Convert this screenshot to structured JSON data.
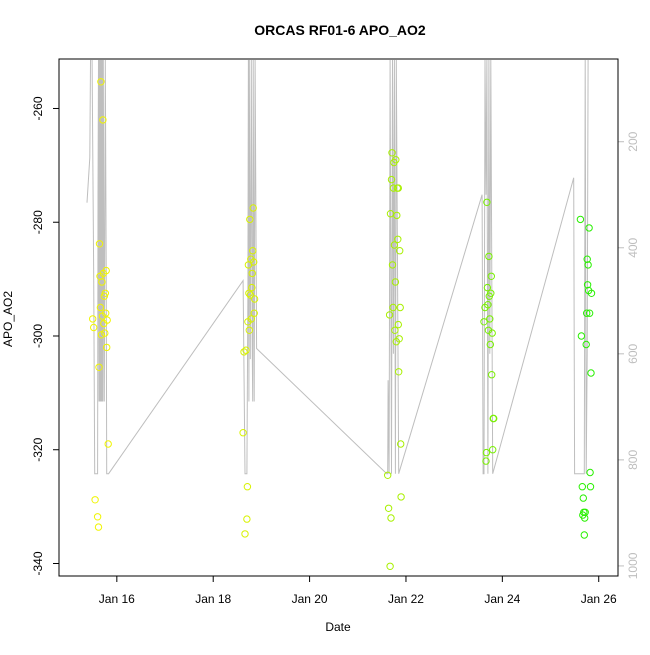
{
  "chart_data": {
    "type": "scatter",
    "title": "ORCAS RF01-6 APO_AO2",
    "xlabel": "Date",
    "ylabel": "APO_AO2",
    "x_ticks": [
      "Jan 16",
      "Jan 18",
      "Jan 20",
      "Jan 22",
      "Jan 24",
      "Jan 26"
    ],
    "x_tick_values": [
      16,
      18,
      20,
      22,
      24,
      26
    ],
    "xlim": [
      14.8,
      26.4
    ],
    "ylim": [
      -342.2,
      -251.3
    ],
    "y_ticks": [
      -340,
      -320,
      -300,
      -280,
      -260
    ],
    "y2_ticks": [
      200,
      400,
      600,
      800,
      1000
    ],
    "y2lim": [
      1019,
      44
    ],
    "y2_axis_color": "#bebebe",
    "secondary_line_color": "#bebebe",
    "box": true,
    "grid": false,
    "legend": "none",
    "points": [
      {
        "x": 15.5,
        "y": -297.0,
        "c": "#f0f500"
      },
      {
        "x": 15.52,
        "y": -298.5,
        "c": "#f0f500"
      },
      {
        "x": 15.55,
        "y": -328.8,
        "c": "#f0f500"
      },
      {
        "x": 15.6,
        "y": -331.8,
        "c": "#f0f500"
      },
      {
        "x": 15.62,
        "y": -333.6,
        "c": "#f0f500"
      },
      {
        "x": 15.63,
        "y": -305.5,
        "c": "#f0f500"
      },
      {
        "x": 15.64,
        "y": -283.8,
        "c": "#f0f500"
      },
      {
        "x": 15.65,
        "y": -289.5,
        "c": "#f0f500"
      },
      {
        "x": 15.66,
        "y": -295.0,
        "c": "#f0f500"
      },
      {
        "x": 15.67,
        "y": -255.3,
        "c": "#f0f500"
      },
      {
        "x": 15.68,
        "y": -299.8,
        "c": "#f0f500"
      },
      {
        "x": 15.69,
        "y": -290.5,
        "c": "#f0f500"
      },
      {
        "x": 15.7,
        "y": -296.5,
        "c": "#f0f500"
      },
      {
        "x": 15.71,
        "y": -262.0,
        "c": "#f0f500"
      },
      {
        "x": 15.72,
        "y": -289.0,
        "c": "#f0f500"
      },
      {
        "x": 15.73,
        "y": -297.8,
        "c": "#f0f500"
      },
      {
        "x": 15.74,
        "y": -293.0,
        "c": "#f0f500"
      },
      {
        "x": 15.75,
        "y": -299.5,
        "c": "#f0f500"
      },
      {
        "x": 15.76,
        "y": -292.5,
        "c": "#f0f500"
      },
      {
        "x": 15.77,
        "y": -296.0,
        "c": "#f0f500"
      },
      {
        "x": 15.78,
        "y": -288.5,
        "c": "#f0f500"
      },
      {
        "x": 15.79,
        "y": -302.0,
        "c": "#f0f500"
      },
      {
        "x": 15.8,
        "y": -297.2,
        "c": "#f0f500"
      },
      {
        "x": 15.82,
        "y": -319.0,
        "c": "#f0f500"
      },
      {
        "x": 18.62,
        "y": -317.0,
        "c": "#d8f200"
      },
      {
        "x": 18.64,
        "y": -302.8,
        "c": "#d8f200"
      },
      {
        "x": 18.66,
        "y": -334.8,
        "c": "#d8f200"
      },
      {
        "x": 18.68,
        "y": -302.5,
        "c": "#d8f200"
      },
      {
        "x": 18.7,
        "y": -332.2,
        "c": "#d8f200"
      },
      {
        "x": 18.71,
        "y": -326.5,
        "c": "#d8f200"
      },
      {
        "x": 18.72,
        "y": -297.5,
        "c": "#d8f200"
      },
      {
        "x": 18.73,
        "y": -287.5,
        "c": "#d8f200"
      },
      {
        "x": 18.74,
        "y": -292.5,
        "c": "#d8f200"
      },
      {
        "x": 18.75,
        "y": -299.0,
        "c": "#d8f200"
      },
      {
        "x": 18.76,
        "y": -279.5,
        "c": "#d8f200"
      },
      {
        "x": 18.77,
        "y": -292.8,
        "c": "#d8f200"
      },
      {
        "x": 18.78,
        "y": -286.5,
        "c": "#d8f200"
      },
      {
        "x": 18.79,
        "y": -297.0,
        "c": "#d8f200"
      },
      {
        "x": 18.8,
        "y": -291.5,
        "c": "#d8f200"
      },
      {
        "x": 18.81,
        "y": -289.0,
        "c": "#d8f200"
      },
      {
        "x": 18.82,
        "y": -285.0,
        "c": "#d8f200"
      },
      {
        "x": 18.83,
        "y": -277.5,
        "c": "#d8f200"
      },
      {
        "x": 18.84,
        "y": -287.0,
        "c": "#d8f200"
      },
      {
        "x": 18.85,
        "y": -296.0,
        "c": "#d8f200"
      },
      {
        "x": 18.86,
        "y": -293.5,
        "c": "#d8f200"
      },
      {
        "x": 21.62,
        "y": -324.5,
        "c": "#a8f000"
      },
      {
        "x": 21.64,
        "y": -330.3,
        "c": "#a8f000"
      },
      {
        "x": 21.66,
        "y": -296.3,
        "c": "#a8f000"
      },
      {
        "x": 21.67,
        "y": -340.5,
        "c": "#a8f000"
      },
      {
        "x": 21.68,
        "y": -278.5,
        "c": "#a8f000"
      },
      {
        "x": 21.69,
        "y": -332.0,
        "c": "#a8f000"
      },
      {
        "x": 21.7,
        "y": -272.5,
        "c": "#a8f000"
      },
      {
        "x": 21.71,
        "y": -267.8,
        "c": "#a8f000"
      },
      {
        "x": 21.72,
        "y": -287.5,
        "c": "#a8f000"
      },
      {
        "x": 21.73,
        "y": -295.0,
        "c": "#a8f000"
      },
      {
        "x": 21.74,
        "y": -274.0,
        "c": "#a8f000"
      },
      {
        "x": 21.75,
        "y": -269.5,
        "c": "#a8f000"
      },
      {
        "x": 21.76,
        "y": -284.0,
        "c": "#a8f000"
      },
      {
        "x": 21.77,
        "y": -299.0,
        "c": "#a8f000"
      },
      {
        "x": 21.78,
        "y": -290.5,
        "c": "#a8f000"
      },
      {
        "x": 21.79,
        "y": -269.0,
        "c": "#a8f000"
      },
      {
        "x": 21.8,
        "y": -301.0,
        "c": "#a8f000"
      },
      {
        "x": 21.81,
        "y": -278.8,
        "c": "#a8f000"
      },
      {
        "x": 21.82,
        "y": -274.0,
        "c": "#a8f000"
      },
      {
        "x": 21.83,
        "y": -283.0,
        "c": "#a8f000"
      },
      {
        "x": 21.84,
        "y": -298.0,
        "c": "#a8f000"
      },
      {
        "x": 21.85,
        "y": -306.3,
        "c": "#a8f000"
      },
      {
        "x": 21.86,
        "y": -300.5,
        "c": "#a8f000"
      },
      {
        "x": 21.87,
        "y": -285.0,
        "c": "#a8f000"
      },
      {
        "x": 21.88,
        "y": -295.0,
        "c": "#a8f000"
      },
      {
        "x": 21.89,
        "y": -319.0,
        "c": "#a8f000"
      },
      {
        "x": 21.9,
        "y": -328.3,
        "c": "#a8f000"
      },
      {
        "x": 21.84,
        "y": -274.0,
        "c": "#a8f000"
      },
      {
        "x": 23.62,
        "y": -297.5,
        "c": "#78f000"
      },
      {
        "x": 23.64,
        "y": -295.0,
        "c": "#78f000"
      },
      {
        "x": 23.66,
        "y": -322.0,
        "c": "#78f000"
      },
      {
        "x": 23.67,
        "y": -320.5,
        "c": "#78f000"
      },
      {
        "x": 23.68,
        "y": -276.5,
        "c": "#78f000"
      },
      {
        "x": 23.69,
        "y": -291.5,
        "c": "#78f000"
      },
      {
        "x": 23.7,
        "y": -294.5,
        "c": "#78f000"
      },
      {
        "x": 23.71,
        "y": -299.0,
        "c": "#78f000"
      },
      {
        "x": 23.72,
        "y": -286.0,
        "c": "#78f000"
      },
      {
        "x": 23.73,
        "y": -293.0,
        "c": "#78f000"
      },
      {
        "x": 23.74,
        "y": -297.0,
        "c": "#78f000"
      },
      {
        "x": 23.75,
        "y": -301.5,
        "c": "#78f000"
      },
      {
        "x": 23.76,
        "y": -292.5,
        "c": "#78f000"
      },
      {
        "x": 23.77,
        "y": -289.5,
        "c": "#78f000"
      },
      {
        "x": 23.78,
        "y": -306.8,
        "c": "#78f000"
      },
      {
        "x": 23.79,
        "y": -299.5,
        "c": "#78f000"
      },
      {
        "x": 23.8,
        "y": -320.0,
        "c": "#78f000"
      },
      {
        "x": 23.81,
        "y": -314.5,
        "c": "#78f000"
      },
      {
        "x": 23.82,
        "y": -314.5,
        "c": "#78f000"
      },
      {
        "x": 25.62,
        "y": -279.5,
        "c": "#28f000"
      },
      {
        "x": 25.64,
        "y": -300.0,
        "c": "#28f000"
      },
      {
        "x": 25.66,
        "y": -326.5,
        "c": "#28f000"
      },
      {
        "x": 25.67,
        "y": -331.5,
        "c": "#28f000"
      },
      {
        "x": 25.68,
        "y": -328.5,
        "c": "#28f000"
      },
      {
        "x": 25.69,
        "y": -331.0,
        "c": "#28f000"
      },
      {
        "x": 25.7,
        "y": -335.0,
        "c": "#28f000"
      },
      {
        "x": 25.71,
        "y": -332.0,
        "c": "#28f000"
      },
      {
        "x": 25.72,
        "y": -331.0,
        "c": "#28f000"
      },
      {
        "x": 25.74,
        "y": -301.5,
        "c": "#28f000"
      },
      {
        "x": 25.75,
        "y": -296.0,
        "c": "#28f000"
      },
      {
        "x": 25.76,
        "y": -286.5,
        "c": "#28f000"
      },
      {
        "x": 25.77,
        "y": -291.0,
        "c": "#28f000"
      },
      {
        "x": 25.78,
        "y": -287.5,
        "c": "#28f000"
      },
      {
        "x": 25.79,
        "y": -292.0,
        "c": "#28f000"
      },
      {
        "x": 25.8,
        "y": -281.0,
        "c": "#28f000"
      },
      {
        "x": 25.81,
        "y": -296.0,
        "c": "#28f000"
      },
      {
        "x": 25.82,
        "y": -324.0,
        "c": "#28f000"
      },
      {
        "x": 25.83,
        "y": -326.5,
        "c": "#28f000"
      },
      {
        "x": 25.84,
        "y": -306.5,
        "c": "#28f000"
      },
      {
        "x": 25.85,
        "y": -292.5,
        "c": "#28f000"
      }
    ],
    "secondary_line": [
      [
        15.38,
        315
      ],
      [
        15.44,
        230
      ],
      [
        15.46,
        -26
      ],
      [
        15.48,
        -26
      ],
      [
        15.52,
        455
      ],
      [
        15.54,
        826
      ],
      [
        15.6,
        826
      ],
      [
        15.61,
        300
      ],
      [
        15.62,
        44
      ],
      [
        15.63,
        690
      ],
      [
        15.64,
        44
      ],
      [
        15.65,
        690
      ],
      [
        15.66,
        44
      ],
      [
        15.67,
        690
      ],
      [
        15.68,
        44
      ],
      [
        15.69,
        690
      ],
      [
        15.7,
        44
      ],
      [
        15.71,
        690
      ],
      [
        15.72,
        44
      ],
      [
        15.74,
        690
      ],
      [
        15.76,
        44
      ],
      [
        15.78,
        440
      ],
      [
        15.79,
        826
      ],
      [
        15.83,
        826
      ],
      [
        18.62,
        462
      ],
      [
        18.66,
        826
      ],
      [
        18.7,
        826
      ],
      [
        18.72,
        480
      ],
      [
        18.73,
        44
      ],
      [
        18.74,
        690
      ],
      [
        18.75,
        44
      ],
      [
        18.77,
        610
      ],
      [
        18.79,
        44
      ],
      [
        18.81,
        580
      ],
      [
        18.82,
        690
      ],
      [
        18.83,
        44
      ],
      [
        18.85,
        690
      ],
      [
        18.87,
        44
      ],
      [
        18.9,
        590
      ],
      [
        21.6,
        826
      ],
      [
        21.62,
        826
      ],
      [
        21.63,
        650
      ],
      [
        21.65,
        826
      ],
      [
        21.67,
        44
      ],
      [
        21.7,
        826
      ],
      [
        21.72,
        44
      ],
      [
        21.74,
        600
      ],
      [
        21.76,
        44
      ],
      [
        21.78,
        826
      ],
      [
        21.8,
        44
      ],
      [
        21.85,
        826
      ],
      [
        23.58,
        300
      ],
      [
        23.6,
        826
      ],
      [
        23.62,
        826
      ],
      [
        23.64,
        44
      ],
      [
        23.66,
        300
      ],
      [
        23.68,
        44
      ],
      [
        23.7,
        826
      ],
      [
        23.72,
        44
      ],
      [
        23.74,
        600
      ],
      [
        23.76,
        44
      ],
      [
        23.8,
        826
      ],
      [
        25.48,
        268
      ],
      [
        25.5,
        826
      ],
      [
        25.7,
        826
      ],
      [
        25.72,
        44
      ],
      [
        25.74,
        826
      ],
      [
        25.76,
        600
      ],
      [
        25.78,
        44
      ]
    ]
  }
}
